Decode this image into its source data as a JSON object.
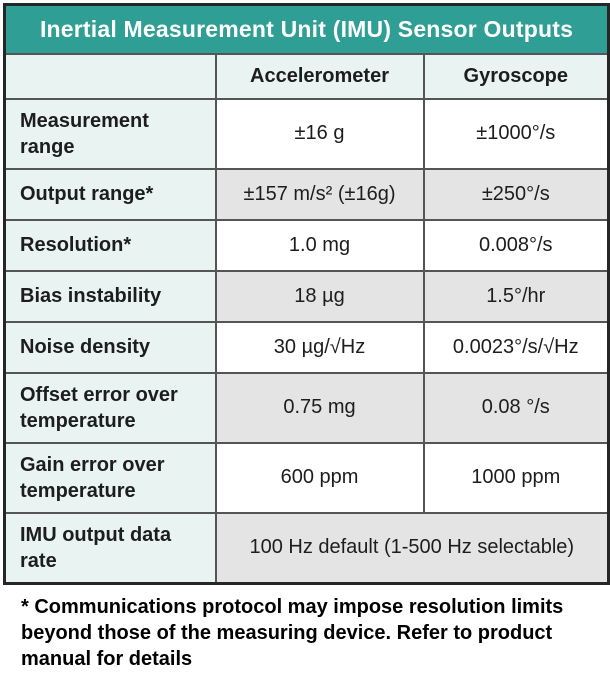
{
  "colors": {
    "teal": "#2F9E95",
    "mint": "#E9F4F2",
    "shade": "#E4E4E4",
    "white_cell": "#FFFFFF",
    "border_inner": "#555555",
    "border_outer": "#262626",
    "text": "#1D1D1D",
    "title_text": "#FFFFFF"
  },
  "chart_data": {
    "type": "table",
    "title": "Inertial Measurement Unit (IMU) Sensor Outputs",
    "columns": {
      "label": "",
      "accelerometer": "Accelerometer",
      "gyroscope": "Gyroscope"
    },
    "rows": [
      {
        "label": "Measurement range",
        "accelerometer": "±16 g",
        "gyroscope": "±1000°/s",
        "shaded": false
      },
      {
        "label": "Output range*",
        "accelerometer": "±157 m/s² (±16g)",
        "gyroscope": "±250°/s",
        "shaded": true
      },
      {
        "label": "Resolution*",
        "accelerometer": "1.0 mg",
        "gyroscope": "0.008°/s",
        "shaded": false
      },
      {
        "label": "Bias instability",
        "accelerometer": "18 µg",
        "gyroscope": "1.5°/hr",
        "shaded": true
      },
      {
        "label": "Noise density",
        "accelerometer": "30 µg/√Hz",
        "gyroscope": "0.0023°/s/√Hz",
        "shaded": false
      },
      {
        "label": "Offset error over temperature",
        "accelerometer": "0.75 mg",
        "gyroscope": "0.08 °/s",
        "shaded": true
      },
      {
        "label": "Gain error over temperature",
        "accelerometer": "600 ppm",
        "gyroscope": "1000 ppm",
        "shaded": false
      }
    ],
    "spanning_row": {
      "label": "IMU output data rate",
      "value": "100 Hz default (1-500 Hz selectable)",
      "shaded": true
    }
  },
  "footnote": "* Communications protocol may impose resolution limits beyond those of the measuring device. Refer to product manual for details"
}
